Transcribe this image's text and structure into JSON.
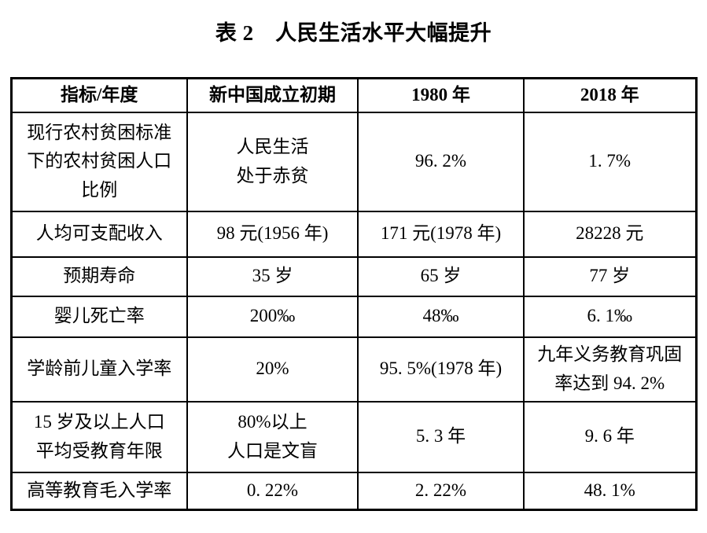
{
  "page": {
    "background_color": "#ffffff",
    "text_color": "#000000",
    "border_color": "#000000"
  },
  "title": "表 2　人民生活水平大幅提升",
  "table": {
    "headers": [
      "指标/年度",
      "新中国成立初期",
      "1980 年",
      "2018 年"
    ],
    "rows": [
      {
        "cells": [
          "现行农村贫困标准\n下的农村贫困人口\n比例",
          "人民生活\n处于赤贫",
          "96. 2%",
          "1. 7%"
        ]
      },
      {
        "cells": [
          "人均可支配收入",
          "98 元(1956 年)",
          "171 元(1978 年)",
          "28228 元"
        ]
      },
      {
        "cells": [
          "预期寿命",
          "35 岁",
          "65 岁",
          "77 岁"
        ]
      },
      {
        "cells": [
          "婴儿死亡率",
          "200‰",
          "48‰",
          "6. 1‰"
        ]
      },
      {
        "cells": [
          "学龄前儿童入学率",
          "20%",
          "95. 5%(1978 年)",
          "九年义务教育巩固\n率达到 94. 2%"
        ]
      },
      {
        "cells": [
          "15 岁及以上人口\n平均受教育年限",
          "80%以上\n人口是文盲",
          "5. 3 年",
          "9. 6 年"
        ]
      },
      {
        "cells": [
          "高等教育毛入学率",
          "0. 22%",
          "2. 22%",
          "48. 1%"
        ]
      }
    ]
  }
}
